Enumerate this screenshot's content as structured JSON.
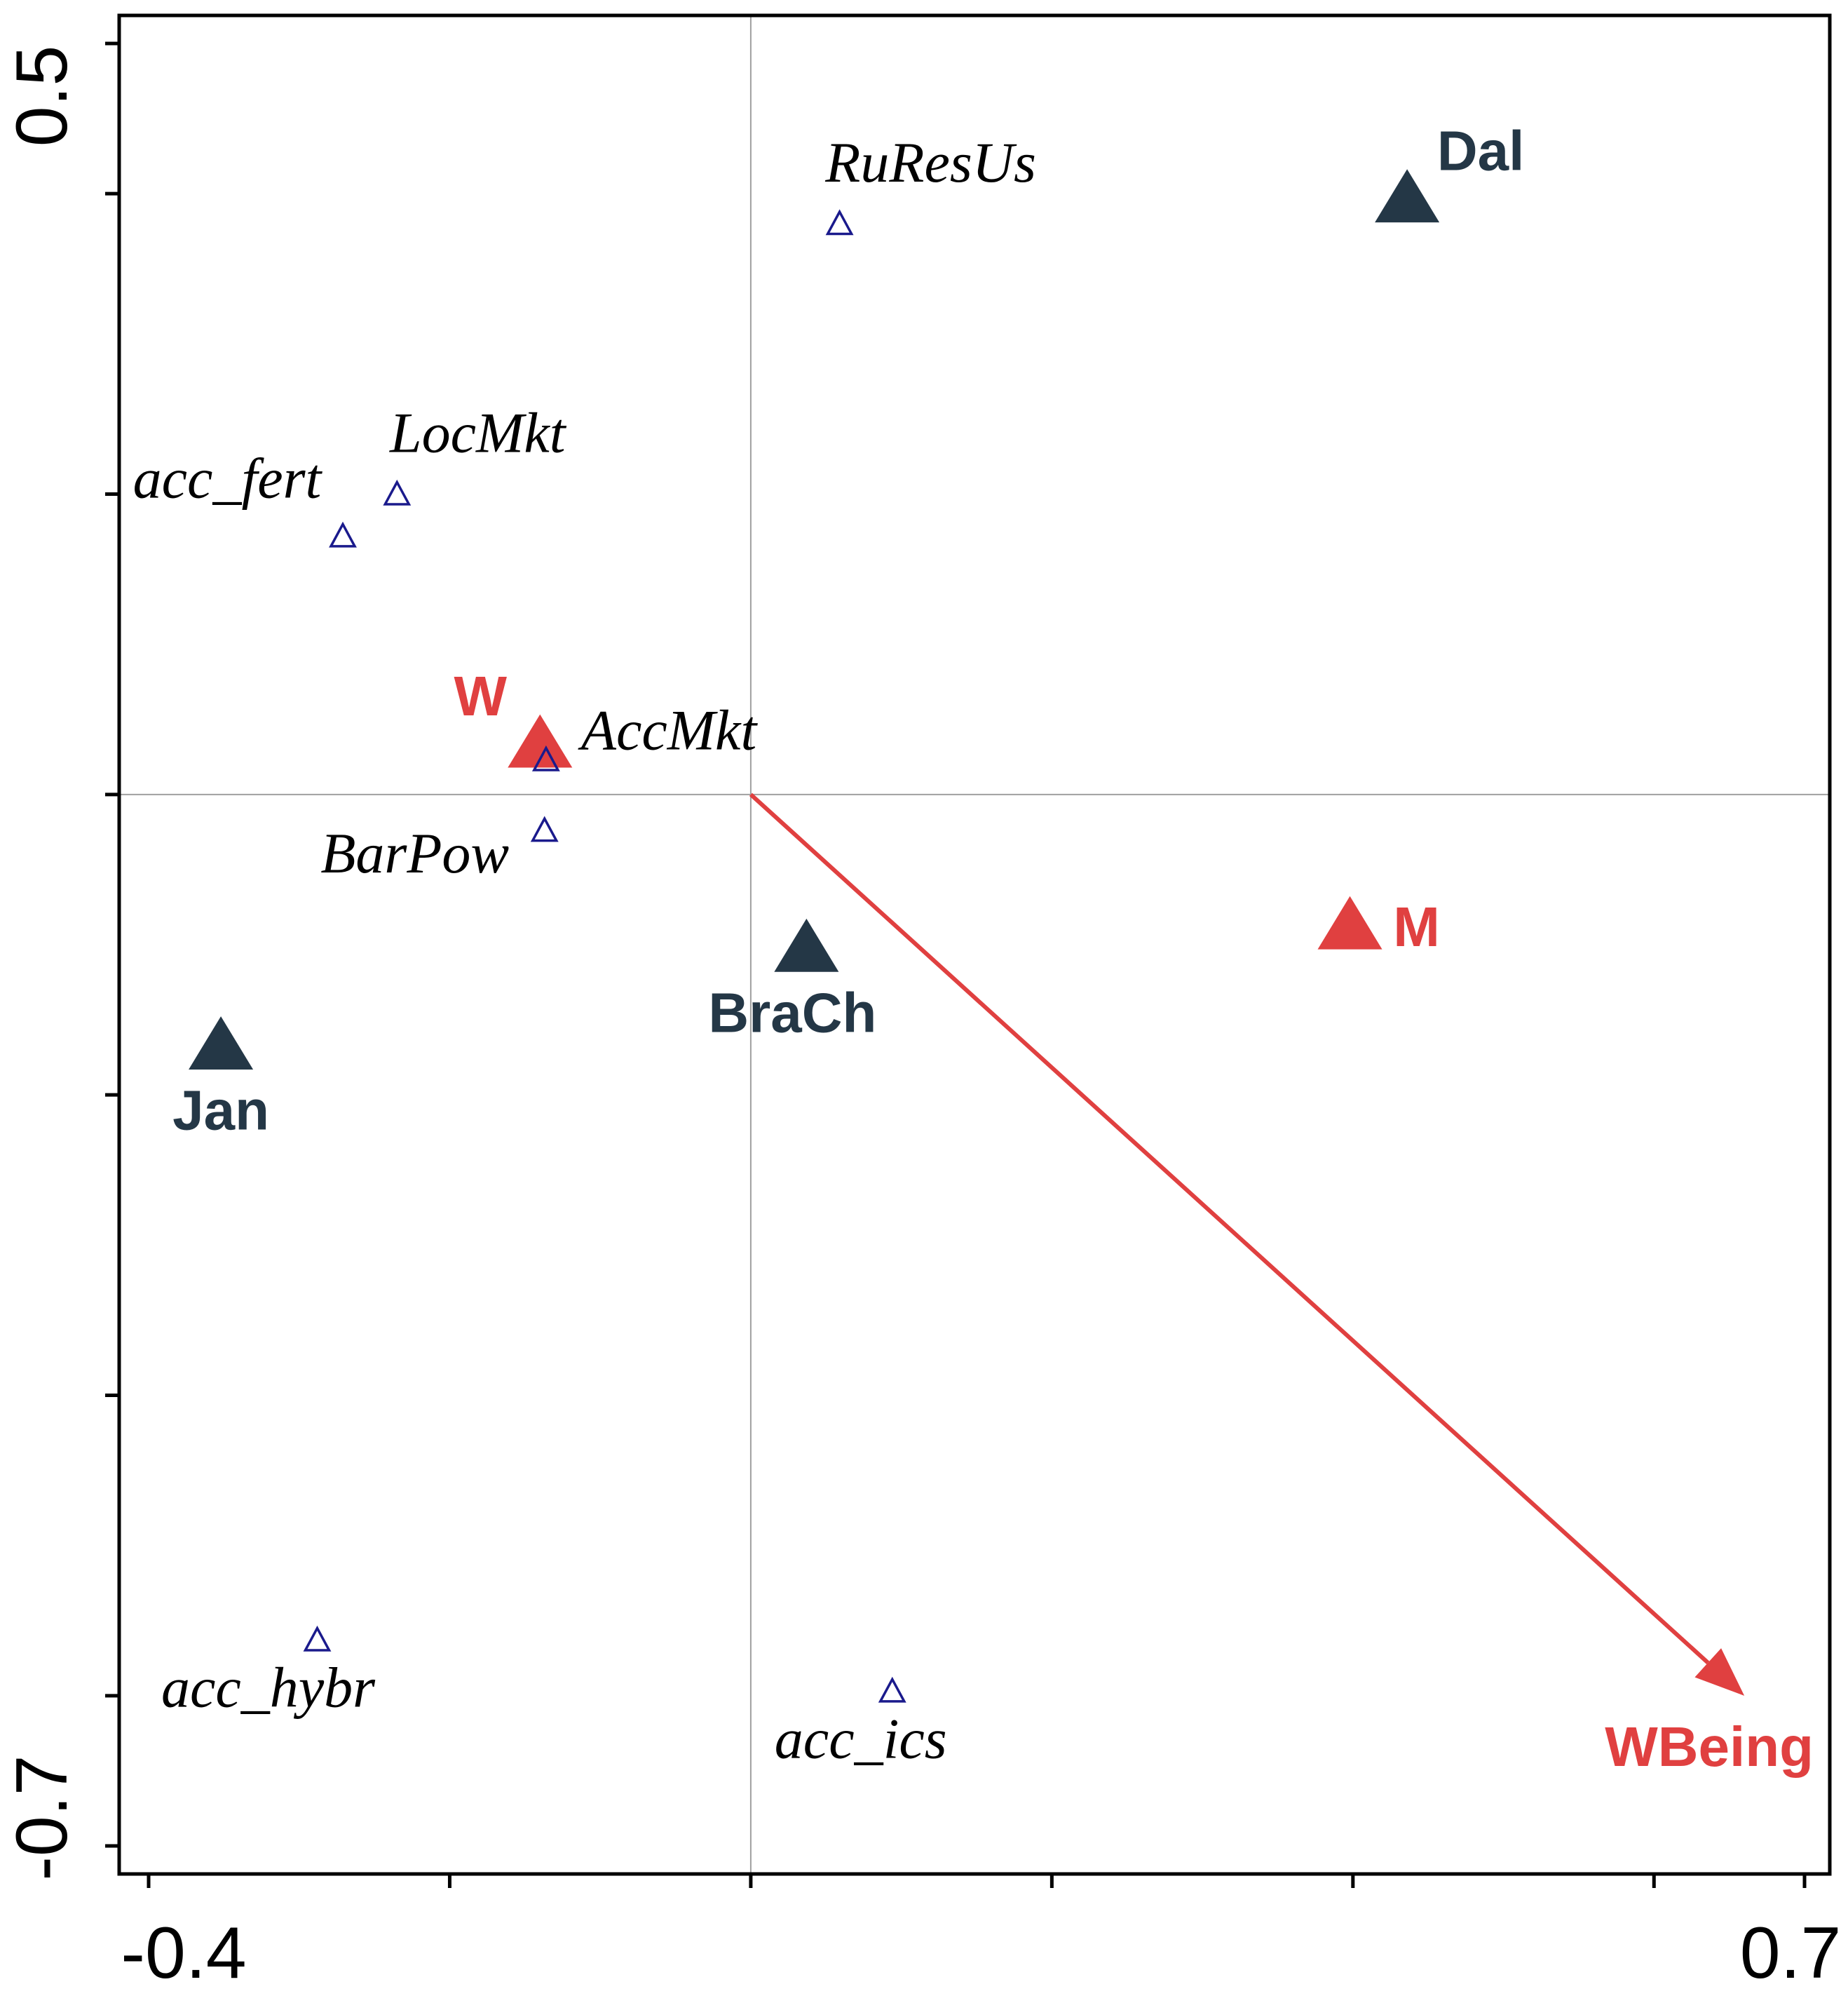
{
  "chart_data": {
    "type": "scatter",
    "title": "",
    "xlabel": "",
    "ylabel": "",
    "xlim": [
      -0.4,
      0.7
    ],
    "ylim": [
      -0.7,
      0.5
    ],
    "x_tick_labels": [
      "-0.4",
      "0.7"
    ],
    "y_tick_labels": [
      "0.5",
      "-0.7"
    ],
    "x_ticks": [
      -0.4,
      -0.2,
      0.0,
      0.2,
      0.4,
      0.6,
      0.7
    ],
    "y_ticks": [
      0.5,
      0.4,
      0.2,
      0.0,
      -0.2,
      -0.4,
      -0.6,
      -0.7
    ],
    "colors": {
      "site": "#243746",
      "gender": "#e04040",
      "variable": "#1a1a8c",
      "arrow": "#e04040",
      "axis": "#000000",
      "crosshair": "#a0a0a0"
    },
    "series": [
      {
        "name": "sites",
        "marker": "filled-triangle",
        "points": [
          {
            "label": "Dal",
            "x": 0.436,
            "y": 0.397
          },
          {
            "label": "BraCh",
            "x": 0.037,
            "y": -0.102
          },
          {
            "label": "Jan",
            "x": -0.352,
            "y": -0.167
          }
        ]
      },
      {
        "name": "gender",
        "marker": "filled-triangle",
        "points": [
          {
            "label": "W",
            "x": -0.14,
            "y": 0.034
          },
          {
            "label": "M",
            "x": 0.398,
            "y": -0.087
          }
        ]
      },
      {
        "name": "variables",
        "marker": "open-triangle",
        "points": [
          {
            "label": "RuResUs",
            "x": 0.059,
            "y": 0.38
          },
          {
            "label": "LocMkt",
            "x": -0.235,
            "y": 0.2
          },
          {
            "label": "acc_fert",
            "x": -0.271,
            "y": 0.172
          },
          {
            "label": "AccMkt",
            "x": -0.136,
            "y": 0.023
          },
          {
            "label": "BarPow",
            "x": -0.137,
            "y": -0.024
          },
          {
            "label": "acc_hybr",
            "x": -0.288,
            "y": -0.563
          },
          {
            "label": "acc_ics",
            "x": 0.094,
            "y": -0.597
          }
        ]
      }
    ],
    "vectors": [
      {
        "label": "WBeing",
        "x0": 0.0,
        "y0": 0.0,
        "x1": 0.66,
        "y1": -0.6
      }
    ]
  }
}
